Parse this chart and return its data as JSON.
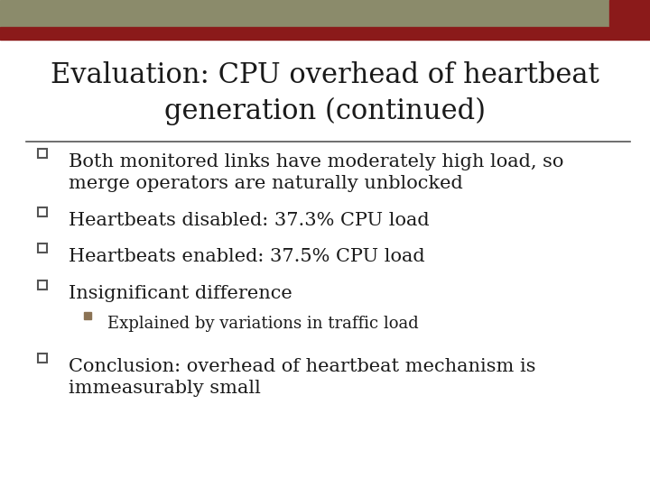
{
  "title_line1": "Evaluation: CPU overhead of heartbeat",
  "title_line2": "generation (continued)",
  "title_fontsize": 22,
  "body_fontsize": 15,
  "sub_fontsize": 13,
  "background_color": "#ffffff",
  "header_bar_color": "#8B8B6B",
  "header_accent_color": "#8B1A1A",
  "header_accent_small_color": "#8B1A1A",
  "title_color": "#1a1a1a",
  "text_color": "#1a1a1a",
  "separator_color": "#555555",
  "bullet_square_color": "#555555",
  "sub_bullet_square_color": "#8B7355",
  "bullets": [
    "Both monitored links have moderately high load, so\nmerge operators are naturally unblocked",
    "Heartbeats disabled: 37.3% CPU load",
    "Heartbeats enabled: 37.5% CPU load",
    "Insignificant difference",
    "Conclusion: overhead of heartbeat mechanism is\nimmeasurably small"
  ],
  "sub_bullets": [
    "Explained by variations in traffic load"
  ],
  "sub_bullet_after_index": 3
}
